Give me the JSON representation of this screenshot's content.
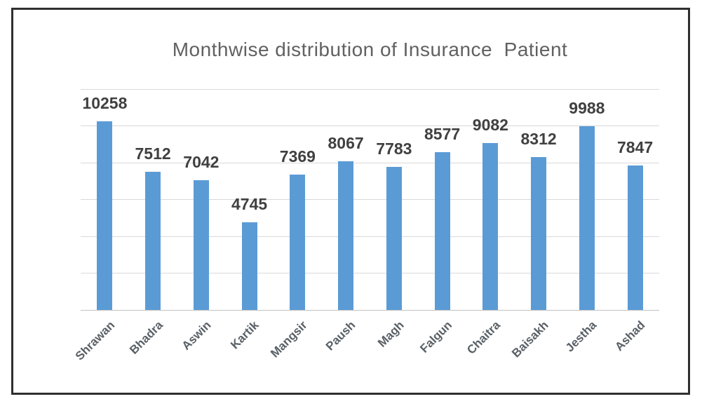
{
  "chart_data": {
    "type": "bar",
    "title": "Monthwise distribution of Insurance  Patient",
    "categories": [
      "Shrawan",
      "Bhadra",
      "Aswin",
      "Kartik",
      "Mangsir",
      "Paush",
      "Magh",
      "Falgun",
      "Chaitra",
      "Baisakh",
      "Jestha",
      "Ashad"
    ],
    "values": [
      10258,
      7512,
      7042,
      4745,
      7369,
      8067,
      7783,
      8577,
      9082,
      8312,
      9988,
      7847
    ],
    "xlabel": "",
    "ylabel": "",
    "ylim": [
      0,
      12000
    ],
    "gridline_step": 2000,
    "grid": true,
    "legend": "none",
    "data_labels": true,
    "y_axis_tick_labels_visible": false,
    "x_label_rotation_deg": 45
  },
  "colors": {
    "bar": "#5b9bd5",
    "title_text": "#616161",
    "data_label_text": "#404040",
    "axis_label_text": "#596066",
    "gridline": "#d9d9d9",
    "axis_line": "#c3c3c3",
    "frame_border": "#2f2f2f",
    "background": "#ffffff"
  }
}
